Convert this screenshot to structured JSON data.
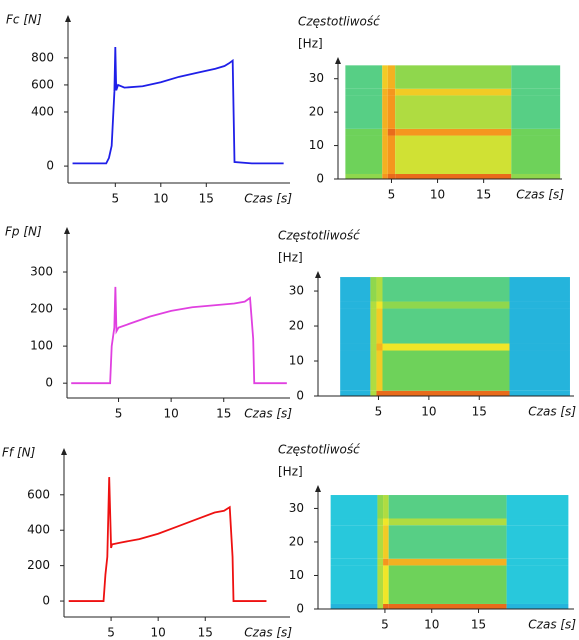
{
  "chart_data": [
    {
      "type": "line",
      "ylabel": "Fc [N]",
      "xlabel": "Czas [s]",
      "color": "#1f1fe8",
      "xlim": [
        -0.2,
        24.2
      ],
      "ylim": [
        -125,
        1080
      ],
      "xticks": [
        5,
        10,
        15
      ],
      "yticks": [
        0,
        400,
        600,
        800
      ],
      "x": [
        0.3,
        4,
        4.3,
        4.6,
        4.9,
        5.0,
        5.1,
        5.3,
        6,
        8,
        10,
        12,
        14,
        16,
        17,
        17.5,
        17.9,
        18.0,
        18.1,
        20,
        23.5
      ],
      "values": [
        20,
        20,
        60,
        150,
        550,
        880,
        560,
        600,
        580,
        590,
        620,
        660,
        690,
        720,
        740,
        760,
        780,
        400,
        30,
        20,
        20
      ]
    },
    {
      "type": "heatmap",
      "title": "Częstotliwość",
      "ylabel": "[Hz]",
      "xlabel": "Czas [s]",
      "xlim": [
        -0.8,
        23.5
      ],
      "ylim": [
        0,
        35
      ],
      "xticks": [
        5,
        10,
        15
      ],
      "yticks": [
        0,
        10,
        20,
        30
      ],
      "x_edges": [
        0,
        4,
        4.6,
        5.4,
        18,
        23.3
      ],
      "y_edges": [
        0,
        1.5,
        13,
        15,
        25,
        27,
        34
      ],
      "z": [
        [
          0.55,
          0.85,
          0.9,
          0.9,
          0.55
        ],
        [
          0.5,
          0.8,
          0.85,
          0.65,
          0.5
        ],
        [
          0.5,
          0.8,
          0.9,
          0.85,
          0.5
        ],
        [
          0.45,
          0.8,
          0.85,
          0.6,
          0.45
        ],
        [
          0.45,
          0.8,
          0.85,
          0.75,
          0.45
        ],
        [
          0.45,
          0.75,
          0.8,
          0.55,
          0.45
        ]
      ]
    },
    {
      "type": "line",
      "ylabel": "Fp [N]",
      "xlabel": "Czas [s]",
      "color": "#e040e0",
      "xlim": [
        0.1,
        21.3
      ],
      "ylim": [
        -40,
        408
      ],
      "xticks": [
        5,
        10,
        15
      ],
      "yticks": [
        0,
        100,
        200,
        300
      ],
      "x": [
        0.5,
        4.2,
        4.35,
        4.6,
        4.7,
        4.8,
        5.0,
        6,
        8,
        10,
        12,
        14,
        16,
        17,
        17.5,
        17.8,
        17.9,
        20,
        21
      ],
      "values": [
        0,
        0,
        100,
        150,
        260,
        140,
        150,
        160,
        180,
        195,
        205,
        210,
        215,
        220,
        230,
        120,
        0,
        0,
        0
      ]
    },
    {
      "type": "heatmap",
      "title": "Częstotliwość",
      "ylabel": "[Hz]",
      "xlabel": "Czas [s]",
      "xlim": [
        -1,
        24.4
      ],
      "ylim": [
        0,
        34.3
      ],
      "xticks": [
        5,
        10,
        15
      ],
      "yticks": [
        0,
        10,
        20,
        30
      ],
      "x_edges": [
        1.2,
        4.2,
        4.8,
        5.4,
        18,
        24
      ],
      "y_edges": [
        0,
        1.5,
        13,
        15,
        25,
        27,
        34
      ],
      "z": [
        [
          0.3,
          0.6,
          0.9,
          0.9,
          0.3
        ],
        [
          0.3,
          0.6,
          0.75,
          0.5,
          0.3
        ],
        [
          0.3,
          0.6,
          0.8,
          0.7,
          0.3
        ],
        [
          0.3,
          0.6,
          0.75,
          0.45,
          0.3
        ],
        [
          0.3,
          0.6,
          0.7,
          0.55,
          0.3
        ],
        [
          0.3,
          0.55,
          0.6,
          0.45,
          0.3
        ]
      ]
    },
    {
      "type": "line",
      "ylabel": "Ff [N]",
      "xlabel": "Czas [s]",
      "color": "#ee1111",
      "xlim": [
        0,
        24
      ],
      "ylim": [
        -90,
        836
      ],
      "xticks": [
        5,
        10,
        15
      ],
      "yticks": [
        0,
        200,
        400,
        600
      ],
      "x": [
        0.5,
        4.2,
        4.4,
        4.6,
        4.8,
        5.0,
        5.1,
        6,
        8,
        10,
        12,
        14,
        16,
        17,
        17.6,
        17.9,
        18.0,
        20,
        21.5
      ],
      "values": [
        0,
        0,
        150,
        250,
        700,
        300,
        320,
        330,
        350,
        380,
        420,
        460,
        500,
        510,
        530,
        250,
        0,
        0,
        0
      ]
    },
    {
      "type": "heatmap",
      "title": "Częstotliwość",
      "ylabel": "[Hz]",
      "xlabel": "Czas [s]",
      "xlim": [
        -2.15,
        25.2
      ],
      "ylim": [
        0,
        35.5
      ],
      "xticks": [
        5,
        10,
        15
      ],
      "yticks": [
        0,
        10,
        20,
        30
      ],
      "x_edges": [
        -0.8,
        4.2,
        4.8,
        5.4,
        18,
        24.6
      ],
      "y_edges": [
        0,
        1.5,
        13,
        15,
        25,
        27,
        34
      ],
      "z": [
        [
          0.3,
          0.6,
          0.9,
          0.9,
          0.3
        ],
        [
          0.35,
          0.6,
          0.7,
          0.5,
          0.35
        ],
        [
          0.35,
          0.6,
          0.85,
          0.8,
          0.35
        ],
        [
          0.35,
          0.6,
          0.75,
          0.45,
          0.35
        ],
        [
          0.35,
          0.6,
          0.7,
          0.6,
          0.35
        ],
        [
          0.35,
          0.55,
          0.6,
          0.45,
          0.35
        ]
      ]
    }
  ]
}
